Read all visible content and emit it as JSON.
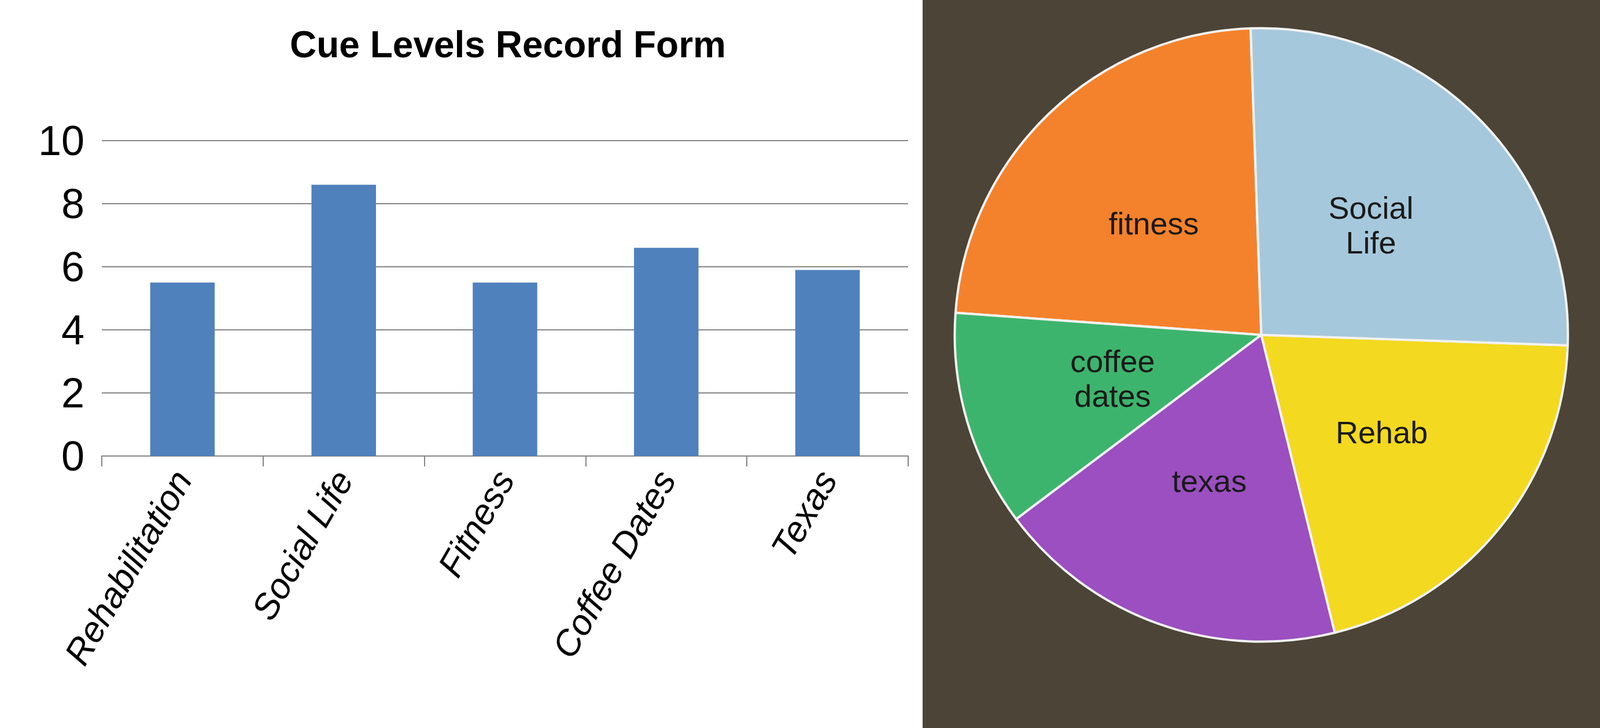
{
  "chart_data": [
    {
      "type": "bar",
      "title": "Cue Levels Record Form",
      "categories": [
        "Rehabilitation",
        "Social Life",
        "Fitness",
        "Coffee Dates",
        "Texas"
      ],
      "values": [
        5.5,
        8.6,
        5.5,
        6.6,
        5.9
      ],
      "color": "#4f81bd",
      "ylim": [
        0,
        10
      ],
      "yticks": [
        0,
        2,
        4,
        6,
        8,
        10
      ],
      "grid": true
    },
    {
      "type": "pie",
      "categories": [
        "fitness",
        "coffee dates",
        "texas",
        "Rehab",
        "Social Life"
      ],
      "values": [
        23.3,
        11.4,
        18.6,
        20.6,
        26.1
      ],
      "colors": [
        "#f4822c",
        "#3db46d",
        "#9b4fc0",
        "#f3d91f",
        "#a6c8dc"
      ]
    }
  ]
}
